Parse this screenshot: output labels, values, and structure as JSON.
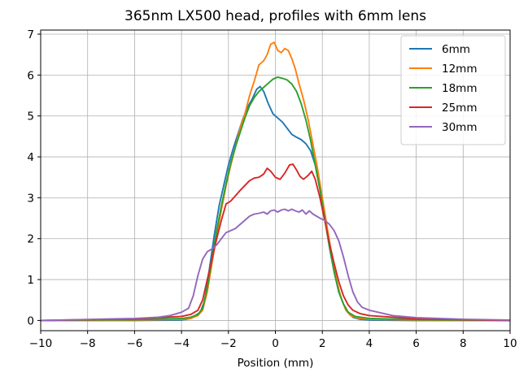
{
  "chart_data": {
    "type": "line",
    "title": "365nm LX500 head, profiles with 6mm lens",
    "xlabel": "Position (mm)",
    "ylabel": "",
    "xlim": [
      -10,
      10
    ],
    "ylim": [
      -0.25,
      7.1
    ],
    "xticks": [
      "−10",
      "−8",
      "−6",
      "−4",
      "−2",
      "0",
      "2",
      "4",
      "6",
      "8",
      "10"
    ],
    "yticks": [
      "0",
      "1",
      "2",
      "3",
      "4",
      "5",
      "6",
      "7"
    ],
    "grid": true,
    "legend_position": "top-right",
    "series": [
      {
        "name": "6mm",
        "color": "#1f77b4",
        "points": [
          [
            -10,
            0
          ],
          [
            -6,
            0
          ],
          [
            -4,
            0.01
          ],
          [
            -3.6,
            0.05
          ],
          [
            -3.2,
            0.2
          ],
          [
            -3,
            0.5
          ],
          [
            -2.8,
            1.3
          ],
          [
            -2.6,
            2.1
          ],
          [
            -2.4,
            2.8
          ],
          [
            -2.2,
            3.3
          ],
          [
            -2,
            3.8
          ],
          [
            -1.8,
            4.2
          ],
          [
            -1.6,
            4.55
          ],
          [
            -1.4,
            4.9
          ],
          [
            -1.2,
            5.2
          ],
          [
            -1,
            5.4
          ],
          [
            -0.8,
            5.65
          ],
          [
            -0.65,
            5.72
          ],
          [
            -0.5,
            5.6
          ],
          [
            -0.3,
            5.3
          ],
          [
            -0.1,
            5.05
          ],
          [
            0.1,
            4.95
          ],
          [
            0.3,
            4.85
          ],
          [
            0.5,
            4.7
          ],
          [
            0.7,
            4.55
          ],
          [
            0.9,
            4.48
          ],
          [
            1.1,
            4.42
          ],
          [
            1.3,
            4.32
          ],
          [
            1.5,
            4.15
          ],
          [
            1.7,
            3.8
          ],
          [
            1.9,
            3.2
          ],
          [
            2.1,
            2.5
          ],
          [
            2.3,
            1.8
          ],
          [
            2.5,
            1.2
          ],
          [
            2.7,
            0.7
          ],
          [
            2.9,
            0.4
          ],
          [
            3.1,
            0.2
          ],
          [
            3.3,
            0.08
          ],
          [
            3.6,
            0.03
          ],
          [
            4,
            0.01
          ],
          [
            6,
            0
          ],
          [
            10,
            0
          ]
        ]
      },
      {
        "name": "12mm",
        "color": "#ff7f0e",
        "points": [
          [
            -10,
            0
          ],
          [
            -6,
            0.01
          ],
          [
            -4,
            0.03
          ],
          [
            -3.6,
            0.05
          ],
          [
            -3.3,
            0.12
          ],
          [
            -3.1,
            0.25
          ],
          [
            -2.9,
            0.7
          ],
          [
            -2.7,
            1.4
          ],
          [
            -2.5,
            2.1
          ],
          [
            -2.3,
            2.7
          ],
          [
            -2.1,
            3.3
          ],
          [
            -1.9,
            3.8
          ],
          [
            -1.7,
            4.25
          ],
          [
            -1.5,
            4.7
          ],
          [
            -1.3,
            5.05
          ],
          [
            -1.1,
            5.5
          ],
          [
            -0.9,
            5.85
          ],
          [
            -0.7,
            6.25
          ],
          [
            -0.5,
            6.35
          ],
          [
            -0.35,
            6.5
          ],
          [
            -0.2,
            6.75
          ],
          [
            -0.05,
            6.8
          ],
          [
            0.1,
            6.6
          ],
          [
            0.25,
            6.55
          ],
          [
            0.4,
            6.65
          ],
          [
            0.55,
            6.6
          ],
          [
            0.7,
            6.4
          ],
          [
            0.85,
            6.15
          ],
          [
            1,
            5.8
          ],
          [
            1.2,
            5.4
          ],
          [
            1.4,
            4.9
          ],
          [
            1.6,
            4.3
          ],
          [
            1.8,
            3.7
          ],
          [
            2,
            3.0
          ],
          [
            2.2,
            2.3
          ],
          [
            2.4,
            1.6
          ],
          [
            2.6,
            1.0
          ],
          [
            2.8,
            0.55
          ],
          [
            3,
            0.25
          ],
          [
            3.2,
            0.12
          ],
          [
            3.5,
            0.06
          ],
          [
            4,
            0.03
          ],
          [
            6,
            0.01
          ],
          [
            10,
            0
          ]
        ]
      },
      {
        "name": "18mm",
        "color": "#2ca02c",
        "points": [
          [
            -10,
            0
          ],
          [
            -6,
            0.02
          ],
          [
            -4,
            0.05
          ],
          [
            -3.6,
            0.08
          ],
          [
            -3.3,
            0.15
          ],
          [
            -3.1,
            0.3
          ],
          [
            -2.9,
            0.8
          ],
          [
            -2.7,
            1.5
          ],
          [
            -2.5,
            2.2
          ],
          [
            -2.3,
            2.8
          ],
          [
            -2.1,
            3.35
          ],
          [
            -1.9,
            3.85
          ],
          [
            -1.7,
            4.25
          ],
          [
            -1.5,
            4.6
          ],
          [
            -1.3,
            4.95
          ],
          [
            -1.1,
            5.25
          ],
          [
            -0.9,
            5.45
          ],
          [
            -0.7,
            5.6
          ],
          [
            -0.5,
            5.7
          ],
          [
            -0.3,
            5.8
          ],
          [
            -0.1,
            5.9
          ],
          [
            0.1,
            5.95
          ],
          [
            0.3,
            5.92
          ],
          [
            0.5,
            5.88
          ],
          [
            0.7,
            5.78
          ],
          [
            0.9,
            5.6
          ],
          [
            1.1,
            5.3
          ],
          [
            1.3,
            4.9
          ],
          [
            1.5,
            4.4
          ],
          [
            1.7,
            3.8
          ],
          [
            1.9,
            3.2
          ],
          [
            2.1,
            2.5
          ],
          [
            2.3,
            1.8
          ],
          [
            2.5,
            1.2
          ],
          [
            2.7,
            0.7
          ],
          [
            2.9,
            0.4
          ],
          [
            3.1,
            0.2
          ],
          [
            3.4,
            0.1
          ],
          [
            4,
            0.05
          ],
          [
            6,
            0.02
          ],
          [
            10,
            0
          ]
        ]
      },
      {
        "name": "25mm",
        "color": "#d62728",
        "points": [
          [
            -10,
            0
          ],
          [
            -6,
            0.04
          ],
          [
            -4,
            0.1
          ],
          [
            -3.6,
            0.15
          ],
          [
            -3.3,
            0.25
          ],
          [
            -3.1,
            0.5
          ],
          [
            -2.9,
            1.0
          ],
          [
            -2.7,
            1.5
          ],
          [
            -2.5,
            2.0
          ],
          [
            -2.3,
            2.45
          ],
          [
            -2.1,
            2.85
          ],
          [
            -1.9,
            2.92
          ],
          [
            -1.7,
            3.05
          ],
          [
            -1.5,
            3.18
          ],
          [
            -1.3,
            3.3
          ],
          [
            -1.1,
            3.42
          ],
          [
            -0.9,
            3.48
          ],
          [
            -0.7,
            3.5
          ],
          [
            -0.5,
            3.58
          ],
          [
            -0.35,
            3.72
          ],
          [
            -0.2,
            3.65
          ],
          [
            0,
            3.5
          ],
          [
            0.2,
            3.45
          ],
          [
            0.4,
            3.6
          ],
          [
            0.6,
            3.8
          ],
          [
            0.75,
            3.82
          ],
          [
            0.9,
            3.68
          ],
          [
            1.05,
            3.52
          ],
          [
            1.2,
            3.45
          ],
          [
            1.4,
            3.55
          ],
          [
            1.55,
            3.65
          ],
          [
            1.7,
            3.45
          ],
          [
            1.9,
            3.0
          ],
          [
            2.1,
            2.45
          ],
          [
            2.3,
            1.9
          ],
          [
            2.5,
            1.4
          ],
          [
            2.7,
            0.95
          ],
          [
            2.9,
            0.6
          ],
          [
            3.1,
            0.38
          ],
          [
            3.3,
            0.25
          ],
          [
            3.6,
            0.17
          ],
          [
            4,
            0.12
          ],
          [
            6,
            0.04
          ],
          [
            10,
            0
          ]
        ]
      },
      {
        "name": "30mm",
        "color": "#9467bd",
        "points": [
          [
            -10,
            0
          ],
          [
            -6,
            0.05
          ],
          [
            -5,
            0.08
          ],
          [
            -4.5,
            0.12
          ],
          [
            -4,
            0.2
          ],
          [
            -3.7,
            0.3
          ],
          [
            -3.5,
            0.6
          ],
          [
            -3.3,
            1.1
          ],
          [
            -3.1,
            1.5
          ],
          [
            -2.9,
            1.68
          ],
          [
            -2.7,
            1.75
          ],
          [
            -2.5,
            1.85
          ],
          [
            -2.3,
            2.0
          ],
          [
            -2.1,
            2.15
          ],
          [
            -1.9,
            2.2
          ],
          [
            -1.7,
            2.25
          ],
          [
            -1.5,
            2.35
          ],
          [
            -1.3,
            2.45
          ],
          [
            -1.1,
            2.55
          ],
          [
            -0.9,
            2.6
          ],
          [
            -0.7,
            2.62
          ],
          [
            -0.5,
            2.65
          ],
          [
            -0.35,
            2.6
          ],
          [
            -0.2,
            2.68
          ],
          [
            -0.05,
            2.7
          ],
          [
            0.1,
            2.65
          ],
          [
            0.25,
            2.7
          ],
          [
            0.4,
            2.72
          ],
          [
            0.55,
            2.68
          ],
          [
            0.7,
            2.72
          ],
          [
            0.85,
            2.68
          ],
          [
            1,
            2.65
          ],
          [
            1.15,
            2.7
          ],
          [
            1.3,
            2.6
          ],
          [
            1.45,
            2.68
          ],
          [
            1.6,
            2.6
          ],
          [
            1.75,
            2.55
          ],
          [
            1.9,
            2.5
          ],
          [
            2.1,
            2.45
          ],
          [
            2.3,
            2.35
          ],
          [
            2.5,
            2.2
          ],
          [
            2.7,
            1.95
          ],
          [
            2.9,
            1.55
          ],
          [
            3.1,
            1.1
          ],
          [
            3.3,
            0.7
          ],
          [
            3.5,
            0.45
          ],
          [
            3.7,
            0.32
          ],
          [
            4,
            0.25
          ],
          [
            5,
            0.12
          ],
          [
            6,
            0.07
          ],
          [
            8,
            0.03
          ],
          [
            10,
            0.01
          ]
        ]
      }
    ]
  }
}
